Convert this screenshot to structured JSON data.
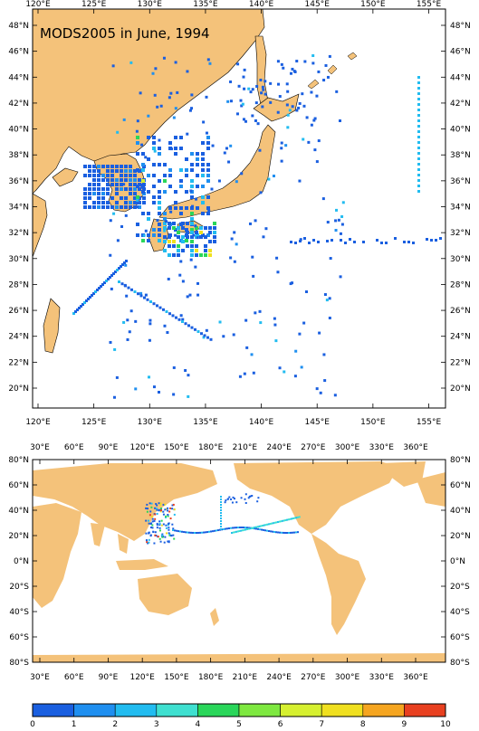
{
  "title": "MODS2005 in June, 1994",
  "regional_map": {
    "lon_labels": [
      "120°E",
      "125°E",
      "130°E",
      "135°E",
      "140°E",
      "145°E",
      "150°E",
      "155°E"
    ],
    "lat_labels": [
      "20°N",
      "22°N",
      "24°N",
      "26°N",
      "28°N",
      "30°N",
      "32°N",
      "34°N",
      "36°N",
      "38°N",
      "40°N",
      "42°N",
      "44°N",
      "46°N",
      "48°N"
    ]
  },
  "global_map": {
    "lon_labels": [
      "30°E",
      "60°E",
      "90°E",
      "120°E",
      "150°E",
      "180°E",
      "210°E",
      "240°E",
      "270°E",
      "300°E",
      "330°E",
      "360°E"
    ],
    "lat_labels": [
      "80°S",
      "60°S",
      "40°S",
      "20°S",
      "0°N",
      "20°N",
      "40°N",
      "60°N",
      "80°N"
    ]
  },
  "colorbar": {
    "labels": [
      "0",
      "1",
      "2",
      "3",
      "4",
      "5",
      "6",
      "7",
      "8",
      "9",
      "10"
    ],
    "colors": [
      "#1a5fe0",
      "#1f8ff0",
      "#22bcf0",
      "#3fe0d0",
      "#2ad65a",
      "#7ee840",
      "#d6f030",
      "#f0e020",
      "#f5a520",
      "#e84020"
    ]
  },
  "colors": {
    "land": "#f4c27a",
    "ocean": "#ffffff",
    "obs_low": "#1f6fe8"
  }
}
